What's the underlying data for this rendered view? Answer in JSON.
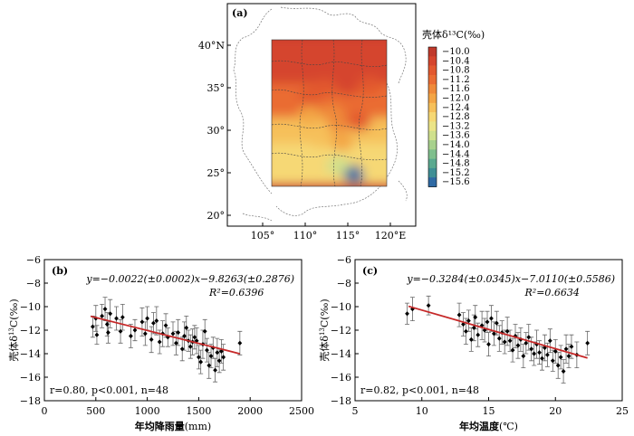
{
  "chart_data": [
    {
      "panel": "(a)",
      "type": "heatmap",
      "x_ticks": [
        "105°",
        "110°",
        "115°",
        "120°E"
      ],
      "y_ticks": [
        "40°N",
        "35°",
        "30°",
        "25°",
        "20°"
      ],
      "colorbar_title": "壳体δ¹³C(‰)",
      "colorbar_levels": [
        -10.0,
        -10.4,
        -10.8,
        -11.2,
        -11.6,
        -12.0,
        -12.4,
        -12.8,
        -13.2,
        -13.6,
        -14.0,
        -14.4,
        -14.8,
        -15.2,
        -15.6
      ],
      "colorbar_labels": [
        "−10.0",
        "−10.4",
        "−10.8",
        "−11.2",
        "−11.6",
        "−12.0",
        "−12.4",
        "−12.8",
        "−13.2",
        "−13.6",
        "−14.0",
        "−14.4",
        "−14.8",
        "−15.2",
        "−15.6"
      ],
      "colorbar_colors": [
        "#c0392b",
        "#d5452d",
        "#e2582f",
        "#ea6c33",
        "#ef8a3a",
        "#f3a545",
        "#f6c05a",
        "#f6d874",
        "#ebe487",
        "#cfe08d",
        "#a8d18d",
        "#7fbf8d",
        "#5aa98f",
        "#3f8f95",
        "#2f6aa4"
      ],
      "hotspots": [
        {
          "lon": 115.8,
          "lat": 24.8,
          "value": -15.4
        },
        {
          "lon": 113.8,
          "lat": 25.9,
          "value": -13.6
        },
        {
          "lon": 112.0,
          "lat": 27.2,
          "value": -12.9
        },
        {
          "lon": 118.0,
          "lat": 25.2,
          "value": -12.9
        },
        {
          "lon": 111.8,
          "lat": 29.0,
          "value": -12.4
        },
        {
          "lon": 114.3,
          "lat": 28.6,
          "value": -12.0
        },
        {
          "lon": 114.0,
          "lat": 30.8,
          "value": -11.7
        },
        {
          "lon": 110.5,
          "lat": 31.8,
          "value": -11.8
        },
        {
          "lon": 117.0,
          "lat": 32.6,
          "value": -11.2
        },
        {
          "lon": 116.3,
          "lat": 31.0,
          "value": -11.0
        },
        {
          "lon": 113.2,
          "lat": 32.0,
          "value": -11.4
        },
        {
          "lon": 110.5,
          "lat": 34.0,
          "value": -11.0
        },
        {
          "lon": 112.3,
          "lat": 35.0,
          "value": -10.8
        },
        {
          "lon": 115.0,
          "lat": 35.2,
          "value": -10.3
        },
        {
          "lon": 117.5,
          "lat": 35.3,
          "value": -11.0
        }
      ]
    },
    {
      "panel": "(b)",
      "type": "scatter",
      "xlabel_pre": "年均降雨量",
      "xlabel_unit": "(mm)",
      "ylabel_pre": "壳体δ",
      "ylabel_sup": "13",
      "ylabel_post": "C(‰)",
      "xlim": [
        0,
        2500
      ],
      "ylim": [
        -18,
        -6
      ],
      "x_ticks": [
        0,
        500,
        1000,
        1500,
        2000,
        2500
      ],
      "y_ticks": [
        -6,
        -8,
        -10,
        -12,
        -14,
        -16,
        -18
      ],
      "equation": "y=−0.0022(±0.0002)x−9.8263(±0.2876)",
      "r2_text": "R²=0.6396",
      "stats_text": "r=0.80, p<0.001, n=48",
      "fit": {
        "slope": -0.0022,
        "intercept": -9.8263,
        "x_range": [
          450,
          1900
        ]
      },
      "points": [
        {
          "x": 470,
          "y": -11.7,
          "e": 0.9
        },
        {
          "x": 500,
          "y": -11.0,
          "e": 1.1
        },
        {
          "x": 510,
          "y": -12.4,
          "e": 0.8
        },
        {
          "x": 560,
          "y": -10.8,
          "e": 1.0
        },
        {
          "x": 590,
          "y": -10.2,
          "e": 1.0
        },
        {
          "x": 610,
          "y": -11.5,
          "e": 1.0
        },
        {
          "x": 620,
          "y": -12.2,
          "e": 0.9
        },
        {
          "x": 640,
          "y": -10.6,
          "e": 1.2
        },
        {
          "x": 700,
          "y": -11.0,
          "e": 1.0
        },
        {
          "x": 740,
          "y": -12.1,
          "e": 1.0
        },
        {
          "x": 760,
          "y": -10.9,
          "e": 1.1
        },
        {
          "x": 840,
          "y": -12.5,
          "e": 1.0
        },
        {
          "x": 880,
          "y": -12.0,
          "e": 0.9
        },
        {
          "x": 950,
          "y": -11.3,
          "e": 1.2
        },
        {
          "x": 980,
          "y": -12.3,
          "e": 1.0
        },
        {
          "x": 1000,
          "y": -11.0,
          "e": 1.0
        },
        {
          "x": 1040,
          "y": -12.8,
          "e": 1.1
        },
        {
          "x": 1060,
          "y": -11.4,
          "e": 0.9
        },
        {
          "x": 1090,
          "y": -11.2,
          "e": 1.2
        },
        {
          "x": 1120,
          "y": -13.0,
          "e": 1.0
        },
        {
          "x": 1150,
          "y": -12.3,
          "e": 1.1
        },
        {
          "x": 1180,
          "y": -11.6,
          "e": 1.0
        },
        {
          "x": 1200,
          "y": -12.6,
          "e": 0.8
        },
        {
          "x": 1250,
          "y": -12.3,
          "e": 1.0
        },
        {
          "x": 1280,
          "y": -13.1,
          "e": 1.0
        },
        {
          "x": 1300,
          "y": -12.2,
          "e": 1.1
        },
        {
          "x": 1340,
          "y": -13.6,
          "e": 1.0
        },
        {
          "x": 1360,
          "y": -12.5,
          "e": 1.2
        },
        {
          "x": 1380,
          "y": -11.8,
          "e": 1.0
        },
        {
          "x": 1400,
          "y": -12.9,
          "e": 0.9
        },
        {
          "x": 1420,
          "y": -13.4,
          "e": 1.0
        },
        {
          "x": 1440,
          "y": -13.0,
          "e": 1.1
        },
        {
          "x": 1460,
          "y": -12.6,
          "e": 1.0
        },
        {
          "x": 1480,
          "y": -12.9,
          "e": 1.1
        },
        {
          "x": 1500,
          "y": -14.3,
          "e": 1.0
        },
        {
          "x": 1520,
          "y": -14.7,
          "e": 1.0
        },
        {
          "x": 1540,
          "y": -13.2,
          "e": 1.2
        },
        {
          "x": 1560,
          "y": -12.1,
          "e": 1.0
        },
        {
          "x": 1580,
          "y": -13.7,
          "e": 1.0
        },
        {
          "x": 1600,
          "y": -15.0,
          "e": 1.1
        },
        {
          "x": 1620,
          "y": -14.2,
          "e": 1.0
        },
        {
          "x": 1640,
          "y": -13.5,
          "e": 0.9
        },
        {
          "x": 1660,
          "y": -15.4,
          "e": 1.0
        },
        {
          "x": 1680,
          "y": -13.9,
          "e": 1.2
        },
        {
          "x": 1700,
          "y": -14.6,
          "e": 1.0
        },
        {
          "x": 1720,
          "y": -13.8,
          "e": 1.0
        },
        {
          "x": 1740,
          "y": -14.3,
          "e": 1.1
        },
        {
          "x": 1900,
          "y": -13.1,
          "e": 1.0
        }
      ]
    },
    {
      "panel": "(c)",
      "type": "scatter",
      "xlabel_pre": "年均温度",
      "xlabel_unit": "(℃)",
      "ylabel_pre": "壳体δ",
      "ylabel_sup": "13",
      "ylabel_post": "C(‰)",
      "xlim": [
        5,
        25
      ],
      "ylim": [
        -18,
        -6
      ],
      "x_ticks": [
        5,
        10,
        15,
        20,
        25
      ],
      "y_ticks": [
        -6,
        -8,
        -10,
        -12,
        -14,
        -16,
        -18
      ],
      "equation": "y=−0.3284(±0.0345)x−7.0110(±0.5586)",
      "r2_text": "R²=0.6634",
      "stats_text": "r=0.82, p<0.001, n=48",
      "fit": {
        "slope": -0.3284,
        "intercept": -7.011,
        "x_range": [
          9.0,
          22.4
        ]
      },
      "points": [
        {
          "x": 8.9,
          "y": -10.6,
          "e": 0.9
        },
        {
          "x": 9.3,
          "y": -10.2,
          "e": 1.0
        },
        {
          "x": 10.5,
          "y": -9.9,
          "e": 0.8
        },
        {
          "x": 12.8,
          "y": -10.7,
          "e": 1.0
        },
        {
          "x": 13.1,
          "y": -11.5,
          "e": 1.0
        },
        {
          "x": 13.3,
          "y": -12.1,
          "e": 1.1
        },
        {
          "x": 13.5,
          "y": -11.2,
          "e": 0.9
        },
        {
          "x": 13.7,
          "y": -12.8,
          "e": 1.0
        },
        {
          "x": 13.9,
          "y": -11.8,
          "e": 1.1
        },
        {
          "x": 14.0,
          "y": -10.9,
          "e": 1.0
        },
        {
          "x": 14.2,
          "y": -12.4,
          "e": 1.0
        },
        {
          "x": 14.5,
          "y": -11.6,
          "e": 1.2
        },
        {
          "x": 14.7,
          "y": -12.0,
          "e": 1.0
        },
        {
          "x": 14.9,
          "y": -11.3,
          "e": 0.9
        },
        {
          "x": 15.0,
          "y": -13.2,
          "e": 1.0
        },
        {
          "x": 15.2,
          "y": -11.0,
          "e": 1.1
        },
        {
          "x": 15.4,
          "y": -12.3,
          "e": 1.0
        },
        {
          "x": 15.6,
          "y": -11.4,
          "e": 1.0
        },
        {
          "x": 15.8,
          "y": -12.7,
          "e": 1.1
        },
        {
          "x": 16.0,
          "y": -12.2,
          "e": 1.0
        },
        {
          "x": 16.2,
          "y": -13.0,
          "e": 1.0
        },
        {
          "x": 16.4,
          "y": -12.1,
          "e": 1.2
        },
        {
          "x": 16.6,
          "y": -12.9,
          "e": 0.9
        },
        {
          "x": 16.8,
          "y": -13.7,
          "e": 1.0
        },
        {
          "x": 17.0,
          "y": -12.5,
          "e": 1.0
        },
        {
          "x": 17.2,
          "y": -13.3,
          "e": 1.1
        },
        {
          "x": 17.4,
          "y": -12.8,
          "e": 1.0
        },
        {
          "x": 17.6,
          "y": -14.2,
          "e": 1.0
        },
        {
          "x": 17.8,
          "y": -13.1,
          "e": 0.9
        },
        {
          "x": 18.0,
          "y": -12.6,
          "e": 1.1
        },
        {
          "x": 18.2,
          "y": -13.6,
          "e": 1.0
        },
        {
          "x": 18.4,
          "y": -14.0,
          "e": 1.0
        },
        {
          "x": 18.6,
          "y": -13.2,
          "e": 1.2
        },
        {
          "x": 18.8,
          "y": -13.9,
          "e": 1.0
        },
        {
          "x": 19.0,
          "y": -14.4,
          "e": 1.0
        },
        {
          "x": 19.2,
          "y": -13.5,
          "e": 1.1
        },
        {
          "x": 19.4,
          "y": -14.1,
          "e": 1.0
        },
        {
          "x": 19.6,
          "y": -12.9,
          "e": 1.0
        },
        {
          "x": 19.8,
          "y": -14.6,
          "e": 0.9
        },
        {
          "x": 20.0,
          "y": -13.8,
          "e": 1.0
        },
        {
          "x": 20.2,
          "y": -15.0,
          "e": 1.1
        },
        {
          "x": 20.4,
          "y": -14.3,
          "e": 1.0
        },
        {
          "x": 20.6,
          "y": -15.5,
          "e": 1.0
        },
        {
          "x": 20.8,
          "y": -13.6,
          "e": 1.2
        },
        {
          "x": 21.0,
          "y": -14.2,
          "e": 1.0
        },
        {
          "x": 21.2,
          "y": -13.4,
          "e": 1.0
        },
        {
          "x": 21.6,
          "y": -14.1,
          "e": 1.1
        },
        {
          "x": 22.4,
          "y": -13.1,
          "e": 1.0
        }
      ]
    }
  ]
}
